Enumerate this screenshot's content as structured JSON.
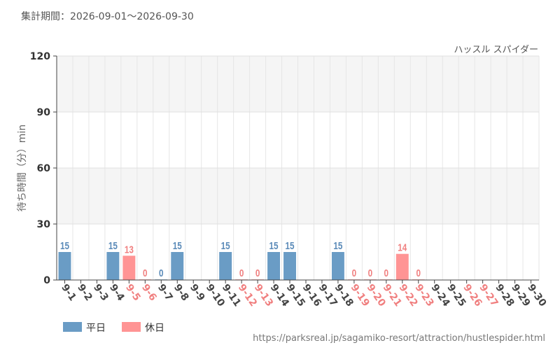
{
  "header": {
    "period_label": "集計期間：2026-09-01～2026-09-30"
  },
  "attraction_name": "ハッスル スパイダー",
  "source_url": "https://parksreal.jp/sagamiko-resort/attraction/hustlespider.html",
  "colors": {
    "weekday": "#6a9cc5",
    "holiday": "#ff9494",
    "weekday_label": "#5a8ab8",
    "holiday_label": "#f07f7f",
    "grid_band": "#f5f5f5",
    "axis": "#444444"
  },
  "chart_data": {
    "type": "bar",
    "ylabel": "待ち時間（分）min",
    "ylim": [
      0,
      120
    ],
    "yticks": [
      0,
      30,
      60,
      90,
      120
    ],
    "categories": [
      "9-1",
      "9-2",
      "9-3",
      "9-4",
      "9-5",
      "9-6",
      "9-7",
      "9-8",
      "9-9",
      "9-10",
      "9-11",
      "9-12",
      "9-13",
      "9-14",
      "9-15",
      "9-16",
      "9-17",
      "9-18",
      "9-19",
      "9-20",
      "9-21",
      "9-22",
      "9-23",
      "9-24",
      "9-25",
      "9-26",
      "9-27",
      "9-28",
      "9-29",
      "9-30"
    ],
    "values": [
      15,
      null,
      null,
      15,
      13,
      0,
      0,
      15,
      null,
      null,
      15,
      0,
      0,
      15,
      15,
      null,
      null,
      15,
      0,
      0,
      0,
      14,
      0,
      null,
      null,
      null,
      null,
      null,
      null,
      null
    ],
    "day_type": [
      "weekday",
      "weekday",
      "weekday",
      "weekday",
      "holiday",
      "holiday",
      "weekday",
      "weekday",
      "weekday",
      "weekday",
      "weekday",
      "holiday",
      "holiday",
      "weekday",
      "weekday",
      "weekday",
      "weekday",
      "weekday",
      "holiday",
      "holiday",
      "holiday",
      "holiday",
      "holiday",
      "weekday",
      "weekday",
      "holiday",
      "holiday",
      "weekday",
      "weekday",
      "weekday"
    ],
    "legend": [
      {
        "key": "weekday",
        "label": "平日"
      },
      {
        "key": "holiday",
        "label": "休日"
      }
    ],
    "legend_position": "bottom-left",
    "grid": true
  }
}
